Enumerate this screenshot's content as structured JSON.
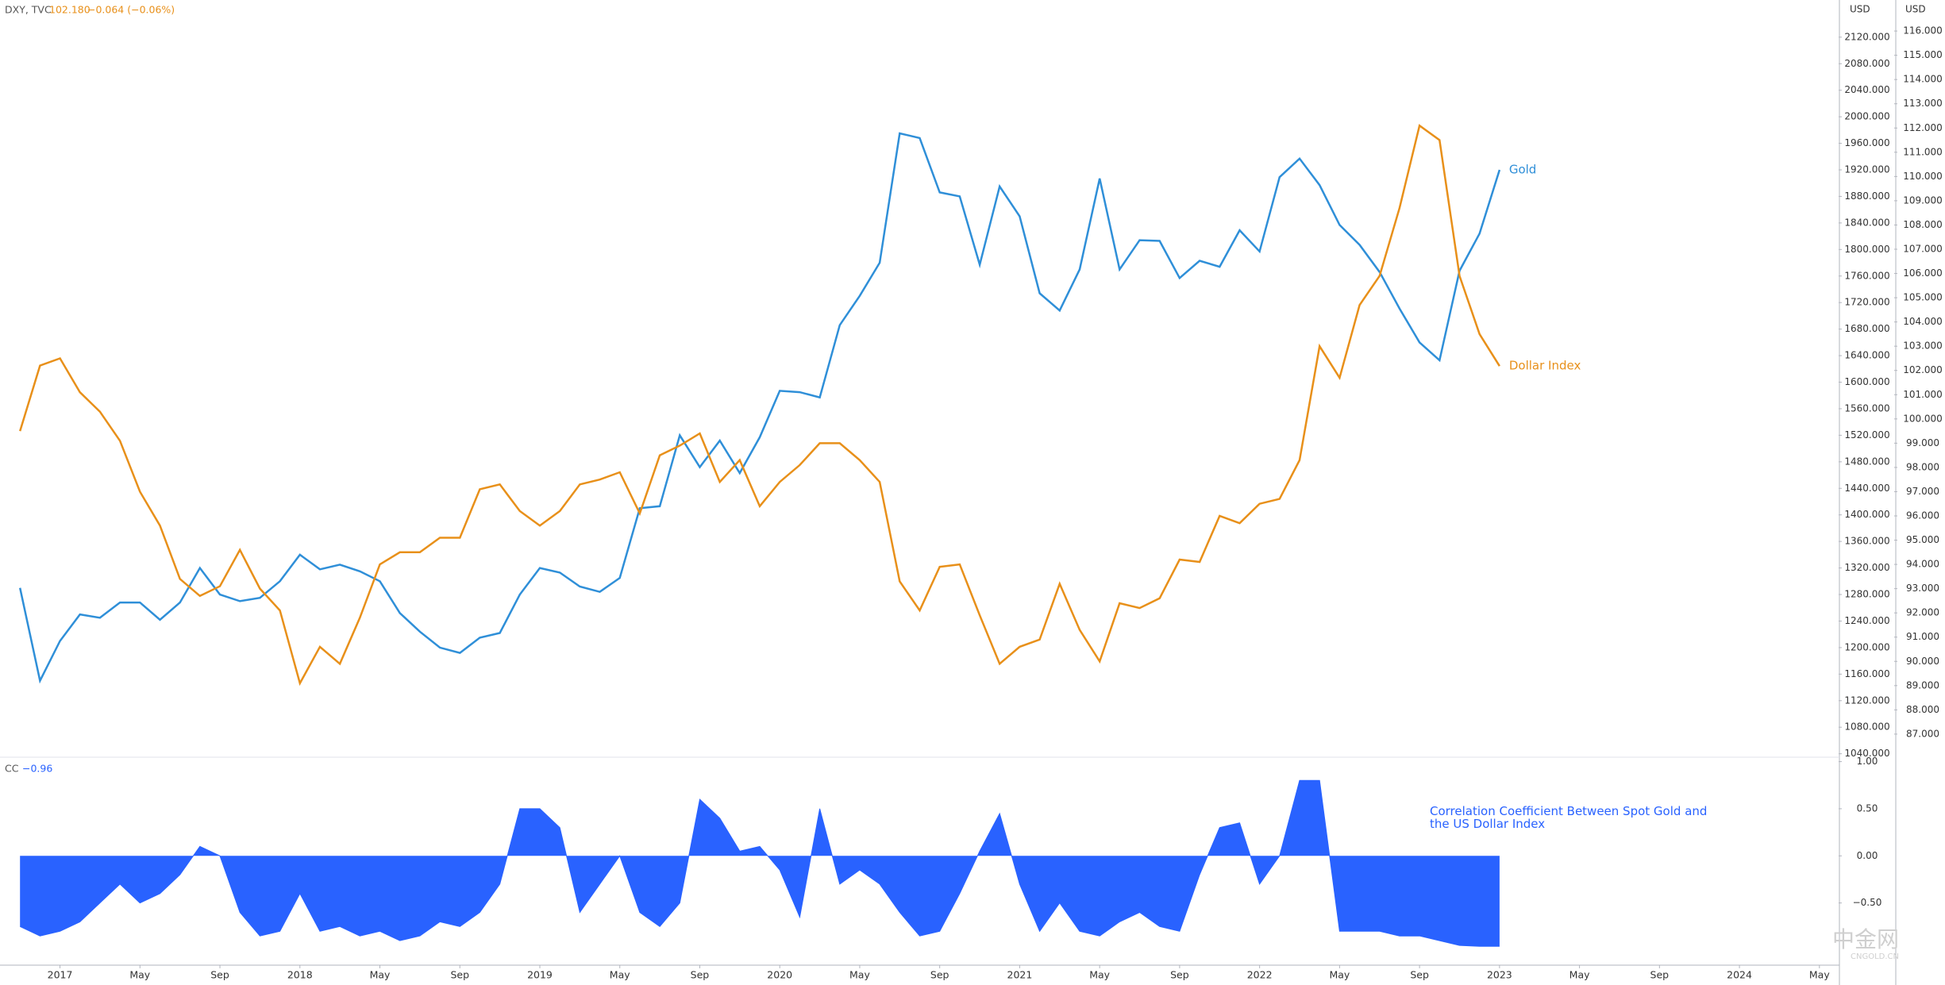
{
  "chart_data": [
    {
      "type": "line",
      "symbol": "DXY, TVC",
      "last_value": "102.180",
      "change": "−0.064 (−0.06%)",
      "y_unit": "USD",
      "y2_unit": "USD",
      "x": [
        "2016-11",
        "2016-12",
        "2017-01",
        "2017-02",
        "2017-03",
        "2017-04",
        "2017-05",
        "2017-06",
        "2017-07",
        "2017-08",
        "2017-09",
        "2017-10",
        "2017-11",
        "2017-12",
        "2018-01",
        "2018-02",
        "2018-03",
        "2018-04",
        "2018-05",
        "2018-06",
        "2018-07",
        "2018-08",
        "2018-09",
        "2018-10",
        "2018-11",
        "2018-12",
        "2019-01",
        "2019-02",
        "2019-03",
        "2019-04",
        "2019-05",
        "2019-06",
        "2019-07",
        "2019-08",
        "2019-09",
        "2019-10",
        "2019-11",
        "2019-12",
        "2020-01",
        "2020-02",
        "2020-03",
        "2020-04",
        "2020-05",
        "2020-06",
        "2020-07",
        "2020-08",
        "2020-09",
        "2020-10",
        "2020-11",
        "2020-12",
        "2021-01",
        "2021-02",
        "2021-03",
        "2021-04",
        "2021-05",
        "2021-06",
        "2021-07",
        "2021-08",
        "2021-09",
        "2021-10",
        "2021-11",
        "2021-12",
        "2022-01",
        "2022-02",
        "2022-03",
        "2022-04",
        "2022-05",
        "2022-06",
        "2022-07",
        "2022-08",
        "2022-09",
        "2022-10",
        "2022-11",
        "2022-12",
        "2023-01"
      ],
      "xlim": [
        "2016-10",
        "2024-06"
      ],
      "series": [
        {
          "name": "Gold",
          "color": "#2f8fd8",
          "axis": "y",
          "values": [
            1290,
            1150,
            1210,
            1250,
            1245,
            1268,
            1268,
            1242,
            1268,
            1320,
            1280,
            1270,
            1275,
            1300,
            1340,
            1318,
            1325,
            1315,
            1300,
            1252,
            1224,
            1200,
            1192,
            1215,
            1222,
            1280,
            1320,
            1313,
            1292,
            1284,
            1305,
            1410,
            1413,
            1520,
            1472,
            1512,
            1463,
            1517,
            1587,
            1585,
            1577,
            1686,
            1730,
            1780,
            1975,
            1968,
            1886,
            1880,
            1777,
            1895,
            1850,
            1734,
            1708,
            1770,
            1907,
            1770,
            1814,
            1813,
            1757,
            1783,
            1774,
            1829,
            1797,
            1909,
            1937,
            1897,
            1837,
            1807,
            1766,
            1711,
            1660,
            1633,
            1768,
            1824,
            1920
          ]
        },
        {
          "name": "Dollar Index",
          "color": "#e8901a",
          "axis": "y2",
          "values": [
            99.5,
            102.2,
            102.5,
            101.1,
            100.3,
            99.1,
            97.0,
            95.6,
            93.4,
            92.7,
            93.1,
            94.6,
            93.0,
            92.1,
            89.1,
            90.6,
            89.9,
            91.8,
            94.0,
            94.5,
            94.5,
            95.1,
            95.1,
            97.1,
            97.3,
            96.2,
            95.6,
            96.2,
            97.3,
            97.5,
            97.8,
            96.1,
            98.5,
            98.9,
            99.4,
            97.4,
            98.3,
            96.4,
            97.4,
            98.1,
            99.0,
            99.0,
            98.3,
            97.4,
            93.3,
            92.1,
            93.9,
            94.0,
            91.9,
            89.9,
            90.6,
            90.9,
            93.2,
            91.3,
            90.0,
            92.4,
            92.2,
            92.6,
            94.2,
            94.1,
            96.0,
            95.7,
            96.5,
            96.7,
            98.3,
            103.0,
            101.7,
            104.7,
            105.9,
            108.7,
            112.1,
            111.5,
            105.9,
            103.5,
            102.18
          ]
        }
      ],
      "ylim": [
        1036,
        2176
      ],
      "yticks": [
        {
          "value": 1040,
          "label": "1040.000"
        },
        {
          "value": 1080,
          "label": "1080.000"
        },
        {
          "value": 1120,
          "label": "1120.000"
        },
        {
          "value": 1160,
          "label": "1160.000"
        },
        {
          "value": 1200,
          "label": "1200.000"
        },
        {
          "value": 1240,
          "label": "1240.000"
        },
        {
          "value": 1280,
          "label": "1280.000"
        },
        {
          "value": 1320,
          "label": "1320.000"
        },
        {
          "value": 1360,
          "label": "1360.000"
        },
        {
          "value": 1400,
          "label": "1400.000"
        },
        {
          "value": 1440,
          "label": "1440.000"
        },
        {
          "value": 1480,
          "label": "1480.000"
        },
        {
          "value": 1520,
          "label": "1520.000"
        },
        {
          "value": 1560,
          "label": "1560.000"
        },
        {
          "value": 1600,
          "label": "1600.000"
        },
        {
          "value": 1640,
          "label": "1640.000"
        },
        {
          "value": 1680,
          "label": "1680.000"
        },
        {
          "value": 1720,
          "label": "1720.000"
        },
        {
          "value": 1760,
          "label": "1760.000"
        },
        {
          "value": 1800,
          "label": "1800.000"
        },
        {
          "value": 1840,
          "label": "1840.000"
        },
        {
          "value": 1880,
          "label": "1880.000"
        },
        {
          "value": 1920,
          "label": "1920.000"
        },
        {
          "value": 1960,
          "label": "1960.000"
        },
        {
          "value": 2000,
          "label": "2000.000"
        },
        {
          "value": 2040,
          "label": "2040.000"
        },
        {
          "value": 2080,
          "label": "2080.000"
        },
        {
          "value": 2120,
          "label": "2120.000"
        }
      ],
      "y2lim": [
        86.08,
        117.28
      ],
      "y2ticks": [
        {
          "value": 87,
          "label": "87.000"
        },
        {
          "value": 88,
          "label": "88.000"
        },
        {
          "value": 89,
          "label": "89.000"
        },
        {
          "value": 90,
          "label": "90.000"
        },
        {
          "value": 91,
          "label": "91.000"
        },
        {
          "value": 92,
          "label": "92.000"
        },
        {
          "value": 93,
          "label": "93.000"
        },
        {
          "value": 94,
          "label": "94.000"
        },
        {
          "value": 95,
          "label": "95.000"
        },
        {
          "value": 96,
          "label": "96.000"
        },
        {
          "value": 97,
          "label": "97.000"
        },
        {
          "value": 98,
          "label": "98.000"
        },
        {
          "value": 99,
          "label": "99.000"
        },
        {
          "value": 100,
          "label": "100.000"
        },
        {
          "value": 101,
          "label": "101.000"
        },
        {
          "value": 102,
          "label": "102.000"
        },
        {
          "value": 103,
          "label": "103.000"
        },
        {
          "value": 104,
          "label": "104.000"
        },
        {
          "value": 105,
          "label": "105.000"
        },
        {
          "value": 106,
          "label": "106.000"
        },
        {
          "value": 107,
          "label": "107.000"
        },
        {
          "value": 108,
          "label": "108.000"
        },
        {
          "value": 109,
          "label": "109.000"
        },
        {
          "value": 110,
          "label": "110.000"
        },
        {
          "value": 111,
          "label": "111.000"
        },
        {
          "value": 112,
          "label": "112.000"
        },
        {
          "value": 113,
          "label": "113.000"
        },
        {
          "value": 114,
          "label": "114.000"
        },
        {
          "value": 115,
          "label": "115.000"
        },
        {
          "value": 116,
          "label": "116.000"
        }
      ],
      "grid": false
    },
    {
      "type": "area",
      "title": "CC",
      "last_value": "−0.96",
      "annotation": "Correlation Coefficient Between Spot Gold and the US Dollar Index",
      "x": [
        "2016-11",
        "2016-12",
        "2017-01",
        "2017-02",
        "2017-03",
        "2017-04",
        "2017-05",
        "2017-06",
        "2017-07",
        "2017-08",
        "2017-09",
        "2017-10",
        "2017-11",
        "2017-12",
        "2018-01",
        "2018-02",
        "2018-03",
        "2018-04",
        "2018-05",
        "2018-06",
        "2018-07",
        "2018-08",
        "2018-09",
        "2018-10",
        "2018-11",
        "2018-12",
        "2019-01",
        "2019-02",
        "2019-03",
        "2019-04",
        "2019-05",
        "2019-06",
        "2019-07",
        "2019-08",
        "2019-09",
        "2019-10",
        "2019-11",
        "2019-12",
        "2020-01",
        "2020-02",
        "2020-03",
        "2020-04",
        "2020-05",
        "2020-06",
        "2020-07",
        "2020-08",
        "2020-09",
        "2020-10",
        "2020-11",
        "2020-12",
        "2021-01",
        "2021-02",
        "2021-03",
        "2021-04",
        "2021-05",
        "2021-06",
        "2021-07",
        "2021-08",
        "2021-09",
        "2021-10",
        "2021-11",
        "2021-12",
        "2022-01",
        "2022-02",
        "2022-03",
        "2022-04",
        "2022-05",
        "2022-06",
        "2022-07",
        "2022-08",
        "2022-09",
        "2022-10",
        "2022-11",
        "2022-12",
        "2023-01"
      ],
      "xlim": [
        "2016-10",
        "2024-06"
      ],
      "series": [
        {
          "name": "CC",
          "color": "#2962ff",
          "values": [
            -0.75,
            -0.85,
            -0.8,
            -0.7,
            -0.5,
            -0.3,
            -0.5,
            -0.4,
            -0.2,
            0.1,
            0,
            -0.6,
            -0.85,
            -0.8,
            -0.4,
            -0.8,
            -0.75,
            -0.85,
            -0.8,
            -0.9,
            -0.85,
            -0.7,
            -0.75,
            -0.6,
            -0.3,
            0.5,
            0.5,
            0.3,
            -0.6,
            -0.3,
            0,
            -0.6,
            -0.75,
            -0.5,
            0.6,
            0.4,
            0.05,
            0.1,
            -0.15,
            -0.65,
            0.5,
            -0.3,
            -0.15,
            -0.3,
            -0.6,
            -0.85,
            -0.8,
            -0.4,
            0.05,
            0.45,
            -0.3,
            -0.8,
            -0.5,
            -0.8,
            -0.85,
            -0.7,
            -0.6,
            -0.75,
            -0.8,
            -0.2,
            0.3,
            0.35,
            -0.3,
            0,
            0.8,
            0.8,
            -0.8,
            -0.8,
            -0.8,
            -0.85,
            -0.85,
            -0.9,
            -0.95,
            -0.96,
            -0.96
          ]
        }
      ],
      "ylim": [
        -1.16,
        1.03
      ],
      "yticks": [
        {
          "value": 1,
          "label": "1.00"
        },
        {
          "value": 0.5,
          "label": "0.50"
        },
        {
          "value": 0,
          "label": "0.00"
        },
        {
          "value": -0.5,
          "label": "−0.50"
        }
      ],
      "xticks": [
        {
          "value": "2017-01",
          "label": "2017"
        },
        {
          "value": "2017-05",
          "label": "May"
        },
        {
          "value": "2017-09",
          "label": "Sep"
        },
        {
          "value": "2018-01",
          "label": "2018"
        },
        {
          "value": "2018-05",
          "label": "May"
        },
        {
          "value": "2018-09",
          "label": "Sep"
        },
        {
          "value": "2019-01",
          "label": "2019"
        },
        {
          "value": "2019-05",
          "label": "May"
        },
        {
          "value": "2019-09",
          "label": "Sep"
        },
        {
          "value": "2020-01",
          "label": "2020"
        },
        {
          "value": "2020-05",
          "label": "May"
        },
        {
          "value": "2020-09",
          "label": "Sep"
        },
        {
          "value": "2021-01",
          "label": "2021"
        },
        {
          "value": "2021-05",
          "label": "May"
        },
        {
          "value": "2021-09",
          "label": "Sep"
        },
        {
          "value": "2022-01",
          "label": "2022"
        },
        {
          "value": "2022-05",
          "label": "May"
        },
        {
          "value": "2022-09",
          "label": "Sep"
        },
        {
          "value": "2023-01",
          "label": "2023"
        },
        {
          "value": "2023-05",
          "label": "May"
        },
        {
          "value": "2023-09",
          "label": "Sep"
        },
        {
          "value": "2024-01",
          "label": "2024"
        },
        {
          "value": "2024-05",
          "label": "May"
        }
      ],
      "grid": false
    }
  ],
  "watermark": {
    "text": "中金网",
    "site": "CNGOLD.CN"
  }
}
